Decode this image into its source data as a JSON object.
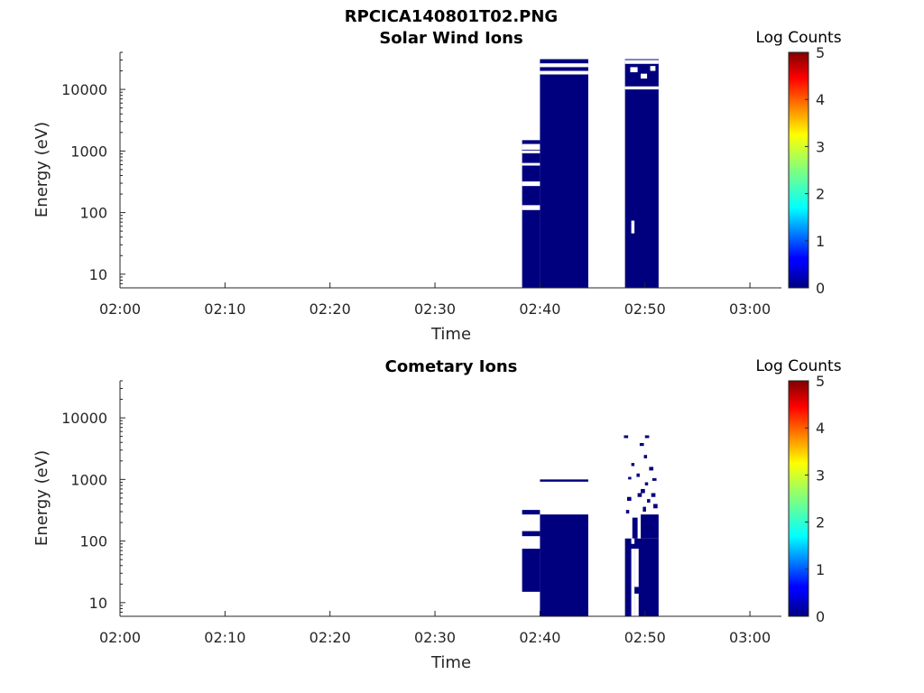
{
  "figure": {
    "title": "RPCICA140801T02.PNG"
  },
  "chart_data": [
    {
      "type": "heatmap",
      "title": "Solar Wind Ions",
      "xlabel": "Time",
      "ylabel": "Energy (eV)",
      "xticks": [
        "02:00",
        "02:10",
        "02:20",
        "02:30",
        "02:40",
        "02:50",
        "03:00"
      ],
      "xlim_minutes": [
        0,
        63
      ],
      "ytick_values": [
        10,
        100,
        1000,
        10000
      ],
      "yticks": [
        "10",
        "100",
        "1000",
        "10000"
      ],
      "ylim": [
        6,
        40000
      ],
      "yscale": "log",
      "colorbar": {
        "label": "Log Counts",
        "ticks": [
          "0",
          "1",
          "2",
          "3",
          "4",
          "5"
        ],
        "min": 0,
        "max": 5,
        "colormap": "jet"
      },
      "cell_value": 0,
      "cell_color": "#00007f",
      "regions": [
        {
          "t": [
            38.3,
            40
          ],
          "e": [
            6,
            1500
          ]
        },
        {
          "t": [
            40,
            44.6
          ],
          "e": [
            6,
            31000
          ]
        },
        {
          "t": [
            48.1,
            51.3
          ],
          "e": [
            6,
            31000
          ]
        }
      ],
      "gaps": [
        {
          "t": [
            38.3,
            40
          ],
          "e": [
            1050,
            1300
          ]
        },
        {
          "t": [
            38.3,
            40
          ],
          "e": [
            580,
            640
          ]
        },
        {
          "t": [
            38.3,
            40
          ],
          "e": [
            920,
            1020
          ]
        },
        {
          "t": [
            38.3,
            40
          ],
          "e": [
            110,
            132
          ]
        },
        {
          "t": [
            38.3,
            40
          ],
          "e": [
            270,
            320
          ]
        },
        {
          "t": [
            40,
            44.6
          ],
          "e": [
            17500,
            20000
          ]
        },
        {
          "t": [
            40,
            44.6
          ],
          "e": [
            23000,
            26500
          ]
        },
        {
          "t": [
            48.1,
            51.3
          ],
          "e": [
            26000,
            30000
          ]
        },
        {
          "t": [
            48.1,
            51.3
          ],
          "e": [
            10000,
            11200
          ]
        },
        {
          "t": [
            48.6,
            49.3
          ],
          "e": [
            19000,
            23000
          ]
        },
        {
          "t": [
            49.6,
            50.2
          ],
          "e": [
            15000,
            18000
          ]
        },
        {
          "t": [
            50.5,
            51.0
          ],
          "e": [
            20000,
            24000
          ]
        },
        {
          "t": [
            48.7,
            49.0
          ],
          "e": [
            46,
            74
          ]
        }
      ]
    },
    {
      "type": "heatmap",
      "title": "Cometary Ions",
      "xlabel": "Time",
      "ylabel": "Energy (eV)",
      "xticks": [
        "02:00",
        "02:10",
        "02:20",
        "02:30",
        "02:40",
        "02:50",
        "03:00"
      ],
      "xlim_minutes": [
        0,
        63
      ],
      "ytick_values": [
        10,
        100,
        1000,
        10000
      ],
      "yticks": [
        "10",
        "100",
        "1000",
        "10000"
      ],
      "ylim": [
        6,
        40000
      ],
      "yscale": "log",
      "colorbar": {
        "label": "Log Counts",
        "ticks": [
          "0",
          "1",
          "2",
          "3",
          "4",
          "5"
        ],
        "min": 0,
        "max": 5,
        "colormap": "jet"
      },
      "cell_value": 0,
      "cell_color": "#00007f",
      "regions": [
        {
          "t": [
            38.3,
            40
          ],
          "e": [
            15,
            75
          ]
        },
        {
          "t": [
            38.3,
            40
          ],
          "e": [
            120,
            145
          ]
        },
        {
          "t": [
            38.3,
            40
          ],
          "e": [
            270,
            320
          ]
        },
        {
          "t": [
            40,
            44.6
          ],
          "e": [
            6,
            270
          ]
        },
        {
          "t": [
            40,
            44.6
          ],
          "e": [
            920,
            1000
          ]
        },
        {
          "t": [
            48.1,
            51.3
          ],
          "e": [
            6,
            110
          ]
        },
        {
          "t": [
            49.6,
            51.3
          ],
          "e": [
            110,
            270
          ]
        },
        {
          "t": [
            48.8,
            49.3
          ],
          "e": [
            110,
            240
          ]
        },
        {
          "t": [
            48.4,
            48.7
          ],
          "e": [
            1000,
            1100
          ]
        },
        {
          "t": [
            49.2,
            49.5
          ],
          "e": [
            1100,
            1250
          ]
        },
        {
          "t": [
            49.6,
            50.0
          ],
          "e": [
            600,
            700
          ]
        },
        {
          "t": [
            50.0,
            50.3
          ],
          "e": [
            800,
            900
          ]
        },
        {
          "t": [
            50.4,
            50.8
          ],
          "e": [
            1400,
            1600
          ]
        },
        {
          "t": [
            50.7,
            51.1
          ],
          "e": [
            950,
            1050
          ]
        },
        {
          "t": [
            48.3,
            48.7
          ],
          "e": [
            450,
            520
          ]
        },
        {
          "t": [
            49.3,
            49.7
          ],
          "e": [
            520,
            600
          ]
        },
        {
          "t": [
            50.2,
            50.5
          ],
          "e": [
            420,
            480
          ]
        },
        {
          "t": [
            50.6,
            51.0
          ],
          "e": [
            520,
            600
          ]
        },
        {
          "t": [
            48.2,
            48.5
          ],
          "e": [
            280,
            320
          ]
        },
        {
          "t": [
            49.8,
            50.1
          ],
          "e": [
            300,
            360
          ]
        },
        {
          "t": [
            50.8,
            51.2
          ],
          "e": [
            340,
            400
          ]
        },
        {
          "t": [
            48.7,
            49.0
          ],
          "e": [
            1650,
            1850
          ]
        },
        {
          "t": [
            49.9,
            50.2
          ],
          "e": [
            2200,
            2500
          ]
        },
        {
          "t": [
            48.0,
            48.4
          ],
          "e": [
            4700,
            5200
          ]
        },
        {
          "t": [
            50.0,
            50.4
          ],
          "e": [
            4700,
            5200
          ]
        },
        {
          "t": [
            49.5,
            49.9
          ],
          "e": [
            3500,
            3900
          ]
        }
      ],
      "gaps": [
        {
          "t": [
            48.7,
            49.0
          ],
          "e": [
            6,
            75
          ]
        },
        {
          "t": [
            49.0,
            49.4
          ],
          "e": [
            18,
            75
          ]
        },
        {
          "t": [
            49.0,
            49.4
          ],
          "e": [
            6,
            14
          ]
        },
        {
          "t": [
            48.7,
            49.0
          ],
          "e": [
            90,
            110
          ]
        }
      ]
    }
  ]
}
